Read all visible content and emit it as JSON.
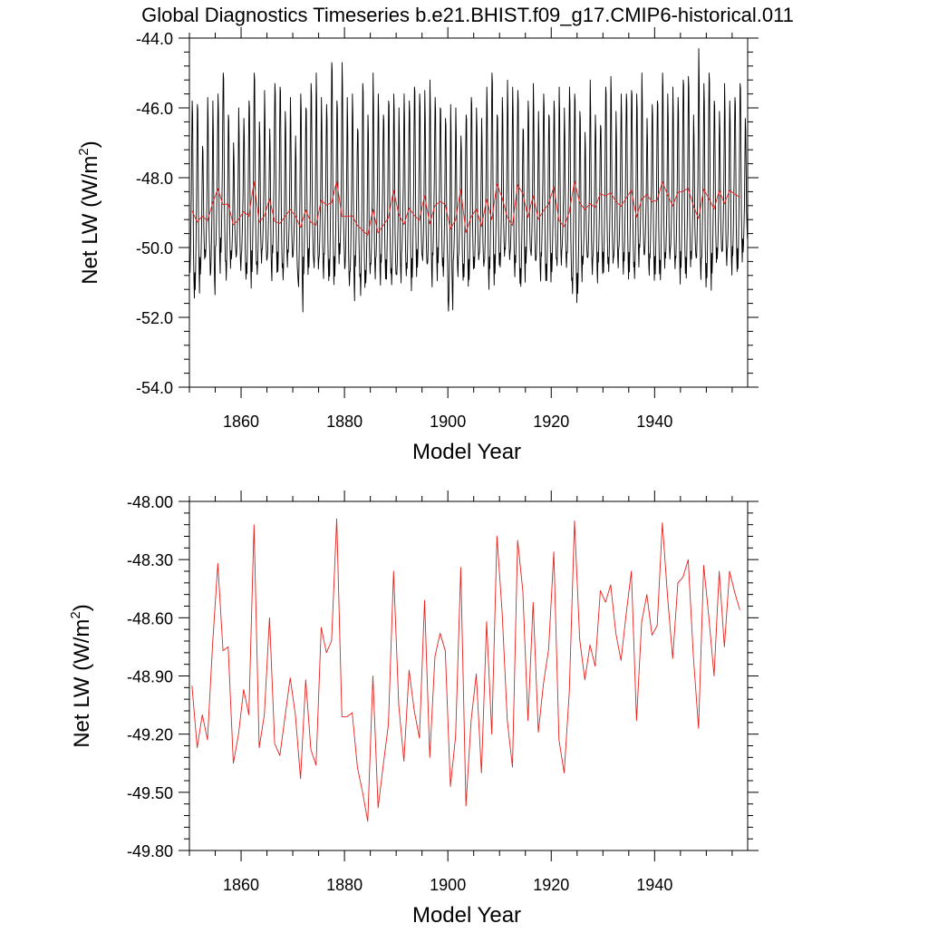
{
  "title": "Global Diagnostics Timeseries b.e21.BHIST.f09_g17.CMIP6-historical.011",
  "colors": {
    "monthly": "#000000",
    "annual": "#e8201c",
    "axis": "#000000"
  },
  "chart_data": [
    {
      "type": "line",
      "name": "monthly-and-annual-net-lw",
      "ylabel": "Net LW (W/m",
      "ylabel_sup": "2",
      "ylabel_close": ")",
      "xlabel": "Model Year",
      "xlim": [
        1850,
        1958
      ],
      "ylim": [
        -54.0,
        -44.0
      ],
      "yticks": [
        -54.0,
        -52.0,
        -50.0,
        -48.0,
        -46.0,
        -44.0
      ],
      "ytick_labels": [
        "-54.0",
        "-52.0",
        "-50.0",
        "-48.0",
        "-46.0",
        "-44.0"
      ],
      "xticks": [
        1860,
        1880,
        1900,
        1920,
        1940
      ],
      "xtick_labels": [
        "1860",
        "1880",
        "1900",
        "1920",
        "1940"
      ],
      "series": [
        {
          "name": "Monthly",
          "color": "#000000",
          "x_start": 1850.04,
          "x_step": 0.0833333,
          "monthly_pattern": [
            -50.1,
            -50.3,
            -49.9,
            -49.3,
            -48.6,
            -47.3,
            -46.1,
            -46.5,
            -48.0,
            -49.5,
            -50.1,
            -50.5
          ],
          "peak_values": [
            -45.8,
            -45.9,
            -47.1,
            -45.7,
            -45.8,
            -45.6,
            -45.0,
            -46.2,
            -47.0,
            -46.0,
            -46.3,
            -45.8,
            -45.0,
            -46.4,
            -45.5,
            -46.6,
            -45.3,
            -45.4,
            -46.1,
            -45.7,
            -46.8,
            -45.6,
            -46.0,
            -45.3,
            -45.0,
            -45.7,
            -45.9,
            -44.7,
            -45.8,
            -44.7,
            -45.7,
            -45.6,
            -46.6,
            -45.3,
            -46.2,
            -45.0,
            -45.6,
            -46.2,
            -45.8,
            -45.6,
            -46.0,
            -45.6,
            -45.8,
            -45.4,
            -45.6,
            -45.5,
            -45.2,
            -45.7,
            -46.0,
            -46.3,
            -45.9,
            -46.0,
            -46.8,
            -46.2,
            -45.7,
            -46.0,
            -46.3,
            -45.4,
            -45.0,
            -46.2,
            -45.7,
            -45.2,
            -45.4,
            -45.5,
            -46.6,
            -45.8,
            -45.3,
            -46.1,
            -45.6,
            -46.2,
            -45.8,
            -45.4,
            -46.0,
            -45.4,
            -45.6,
            -46.1,
            -46.7,
            -45.2,
            -46.2,
            -46.5,
            -45.4,
            -45.1,
            -46.1,
            -45.6,
            -45.6,
            -45.5,
            -45.6,
            -45.0,
            -46.3,
            -45.9,
            -45.8,
            -45.0,
            -45.6,
            -45.4,
            -45.7,
            -45.2,
            -45.1,
            -46.2,
            -44.3,
            -45.3,
            -45.0,
            -45.8,
            -46.1,
            -45.3,
            -45.8,
            -45.7,
            -45.3,
            -46.3
          ],
          "trough_values": [
            -51.1,
            -51.2,
            -50.6,
            -50.5,
            -51.3,
            -50.4,
            -50.2,
            -50.8,
            -50.4,
            -50.7,
            -50.6,
            -50.9,
            -50.6,
            -50.8,
            -50.5,
            -50.7,
            -50.4,
            -50.6,
            -50.9,
            -50.5,
            -50.6,
            -51.5,
            -50.7,
            -50.5,
            -50.9,
            -50.8,
            -50.6,
            -50.9,
            -50.7,
            -50.4,
            -51.1,
            -51.2,
            -50.6,
            -51.3,
            -51.1,
            -51.0,
            -50.8,
            -50.6,
            -50.8,
            -51.1,
            -51.2,
            -50.6,
            -50.9,
            -50.8,
            -50.5,
            -50.7,
            -51.0,
            -50.6,
            -50.4,
            -50.7,
            -52.1,
            -50.8,
            -50.6,
            -50.9,
            -50.8,
            -50.7,
            -50.6,
            -50.9,
            -50.8,
            -50.6,
            -50.6,
            -50.5,
            -50.6,
            -50.7,
            -51.0,
            -50.4,
            -50.6,
            -50.8,
            -50.6,
            -50.9,
            -50.6,
            -50.8,
            -50.5,
            -50.6,
            -51.4,
            -51.2,
            -50.6,
            -50.8,
            -50.7,
            -50.5,
            -50.6,
            -50.8,
            -50.7,
            -50.5,
            -50.6,
            -50.6,
            -50.9,
            -50.4,
            -50.6,
            -50.6,
            -50.7,
            -50.9,
            -50.6,
            -50.5,
            -50.7,
            -50.6,
            -50.8,
            -50.5,
            -50.9,
            -50.8,
            -51.0,
            -50.6,
            -50.4,
            -50.6,
            -50.5,
            -50.4,
            -50.5,
            -50.1
          ]
        },
        {
          "name": "Annual",
          "color": "#e8201c",
          "x_start": 1850.5,
          "x_step": 1.0,
          "values": [
            -48.95,
            -49.27,
            -49.1,
            -49.23,
            -48.73,
            -48.32,
            -48.77,
            -48.75,
            -49.35,
            -49.2,
            -48.97,
            -49.1,
            -48.12,
            -49.27,
            -49.1,
            -48.6,
            -49.25,
            -49.31,
            -49.11,
            -48.91,
            -49.1,
            -49.43,
            -48.92,
            -49.28,
            -49.36,
            -48.65,
            -48.78,
            -48.72,
            -48.09,
            -49.11,
            -49.11,
            -49.09,
            -49.37,
            -49.5,
            -49.65,
            -48.9,
            -49.58,
            -49.36,
            -49.15,
            -48.36,
            -49.05,
            -49.34,
            -48.87,
            -49.08,
            -49.22,
            -48.51,
            -49.32,
            -48.8,
            -48.68,
            -48.77,
            -49.47,
            -49.21,
            -48.34,
            -49.57,
            -49.13,
            -48.89,
            -49.4,
            -48.62,
            -49.2,
            -48.18,
            -48.57,
            -49.13,
            -49.37,
            -48.2,
            -48.46,
            -49.13,
            -48.52,
            -49.19,
            -48.94,
            -48.76,
            -48.26,
            -49.23,
            -49.4,
            -48.98,
            -48.1,
            -48.71,
            -48.92,
            -48.74,
            -48.85,
            -48.46,
            -48.52,
            -48.43,
            -48.68,
            -48.82,
            -48.58,
            -48.36,
            -49.13,
            -48.62,
            -48.48,
            -48.69,
            -48.64,
            -48.11,
            -48.49,
            -48.81,
            -48.42,
            -48.39,
            -48.3,
            -48.8,
            -49.17,
            -48.33,
            -48.6,
            -48.9,
            -48.36,
            -48.75,
            -48.36,
            -48.47,
            -48.56
          ]
        }
      ]
    },
    {
      "type": "line",
      "name": "annual-net-lw",
      "ylabel": "Net LW (W/m",
      "ylabel_sup": "2",
      "ylabel_close": ")",
      "xlabel": "Model Year",
      "xlim": [
        1850,
        1958
      ],
      "ylim": [
        -49.8,
        -48.0
      ],
      "yticks": [
        -49.8,
        -49.5,
        -49.2,
        -48.9,
        -48.6,
        -48.3,
        -48.0
      ],
      "ytick_labels": [
        "-49.80",
        "-49.50",
        "-49.20",
        "-48.90",
        "-48.60",
        "-48.30",
        "-48.00"
      ],
      "xticks": [
        1860,
        1880,
        1900,
        1920,
        1940
      ],
      "xtick_labels": [
        "1860",
        "1880",
        "1900",
        "1920",
        "1940"
      ],
      "series": [
        {
          "name": "Annual",
          "color": "#e8201c",
          "x_start": 1850.5,
          "x_step": 1.0,
          "values": [
            -48.95,
            -49.27,
            -49.1,
            -49.23,
            -48.73,
            -48.32,
            -48.77,
            -48.75,
            -49.35,
            -49.2,
            -48.97,
            -49.1,
            -48.12,
            -49.27,
            -49.1,
            -48.6,
            -49.25,
            -49.31,
            -49.11,
            -48.91,
            -49.1,
            -49.43,
            -48.92,
            -49.28,
            -49.36,
            -48.65,
            -48.78,
            -48.72,
            -48.09,
            -49.11,
            -49.11,
            -49.09,
            -49.37,
            -49.5,
            -49.65,
            -48.9,
            -49.58,
            -49.36,
            -49.15,
            -48.36,
            -49.05,
            -49.34,
            -48.87,
            -49.08,
            -49.22,
            -48.51,
            -49.32,
            -48.8,
            -48.68,
            -48.77,
            -49.47,
            -49.21,
            -48.34,
            -49.57,
            -49.13,
            -48.89,
            -49.4,
            -48.62,
            -49.2,
            -48.18,
            -48.57,
            -49.13,
            -49.37,
            -48.2,
            -48.46,
            -49.13,
            -48.52,
            -49.19,
            -48.94,
            -48.76,
            -48.26,
            -49.23,
            -49.4,
            -48.98,
            -48.1,
            -48.71,
            -48.92,
            -48.74,
            -48.85,
            -48.46,
            -48.52,
            -48.43,
            -48.68,
            -48.82,
            -48.58,
            -48.36,
            -49.13,
            -48.62,
            -48.48,
            -48.69,
            -48.64,
            -48.11,
            -48.49,
            -48.81,
            -48.42,
            -48.39,
            -48.3,
            -48.8,
            -49.17,
            -48.33,
            -48.6,
            -48.9,
            -48.36,
            -48.75,
            -48.36,
            -48.47,
            -48.56
          ]
        }
      ]
    }
  ]
}
